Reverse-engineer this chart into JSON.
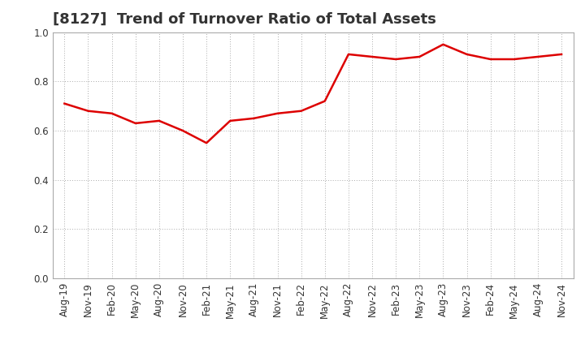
{
  "title": "[8127]  Trend of Turnover Ratio of Total Assets",
  "x_labels": [
    "Aug-19",
    "Nov-19",
    "Feb-20",
    "May-20",
    "Aug-20",
    "Nov-20",
    "Feb-21",
    "May-21",
    "Aug-21",
    "Nov-21",
    "Feb-22",
    "May-22",
    "Aug-22",
    "Nov-22",
    "Feb-23",
    "May-23",
    "Aug-23",
    "Nov-23",
    "Feb-24",
    "May-24",
    "Aug-24",
    "Nov-24"
  ],
  "y_values": [
    0.71,
    0.68,
    0.67,
    0.63,
    0.64,
    0.6,
    0.55,
    0.64,
    0.65,
    0.67,
    0.68,
    0.72,
    0.91,
    0.9,
    0.89,
    0.9,
    0.95,
    0.91,
    0.89,
    0.89,
    0.9,
    0.91
  ],
  "line_color": "#dd0000",
  "line_width": 1.8,
  "ylim": [
    0.0,
    1.0
  ],
  "yticks": [
    0.0,
    0.2,
    0.4,
    0.6,
    0.8,
    1.0
  ],
  "grid_color": "#aaaaaa",
  "title_fontsize": 13,
  "tick_fontsize": 8.5,
  "bg_color": "#ffffff",
  "spine_color": "#aaaaaa"
}
